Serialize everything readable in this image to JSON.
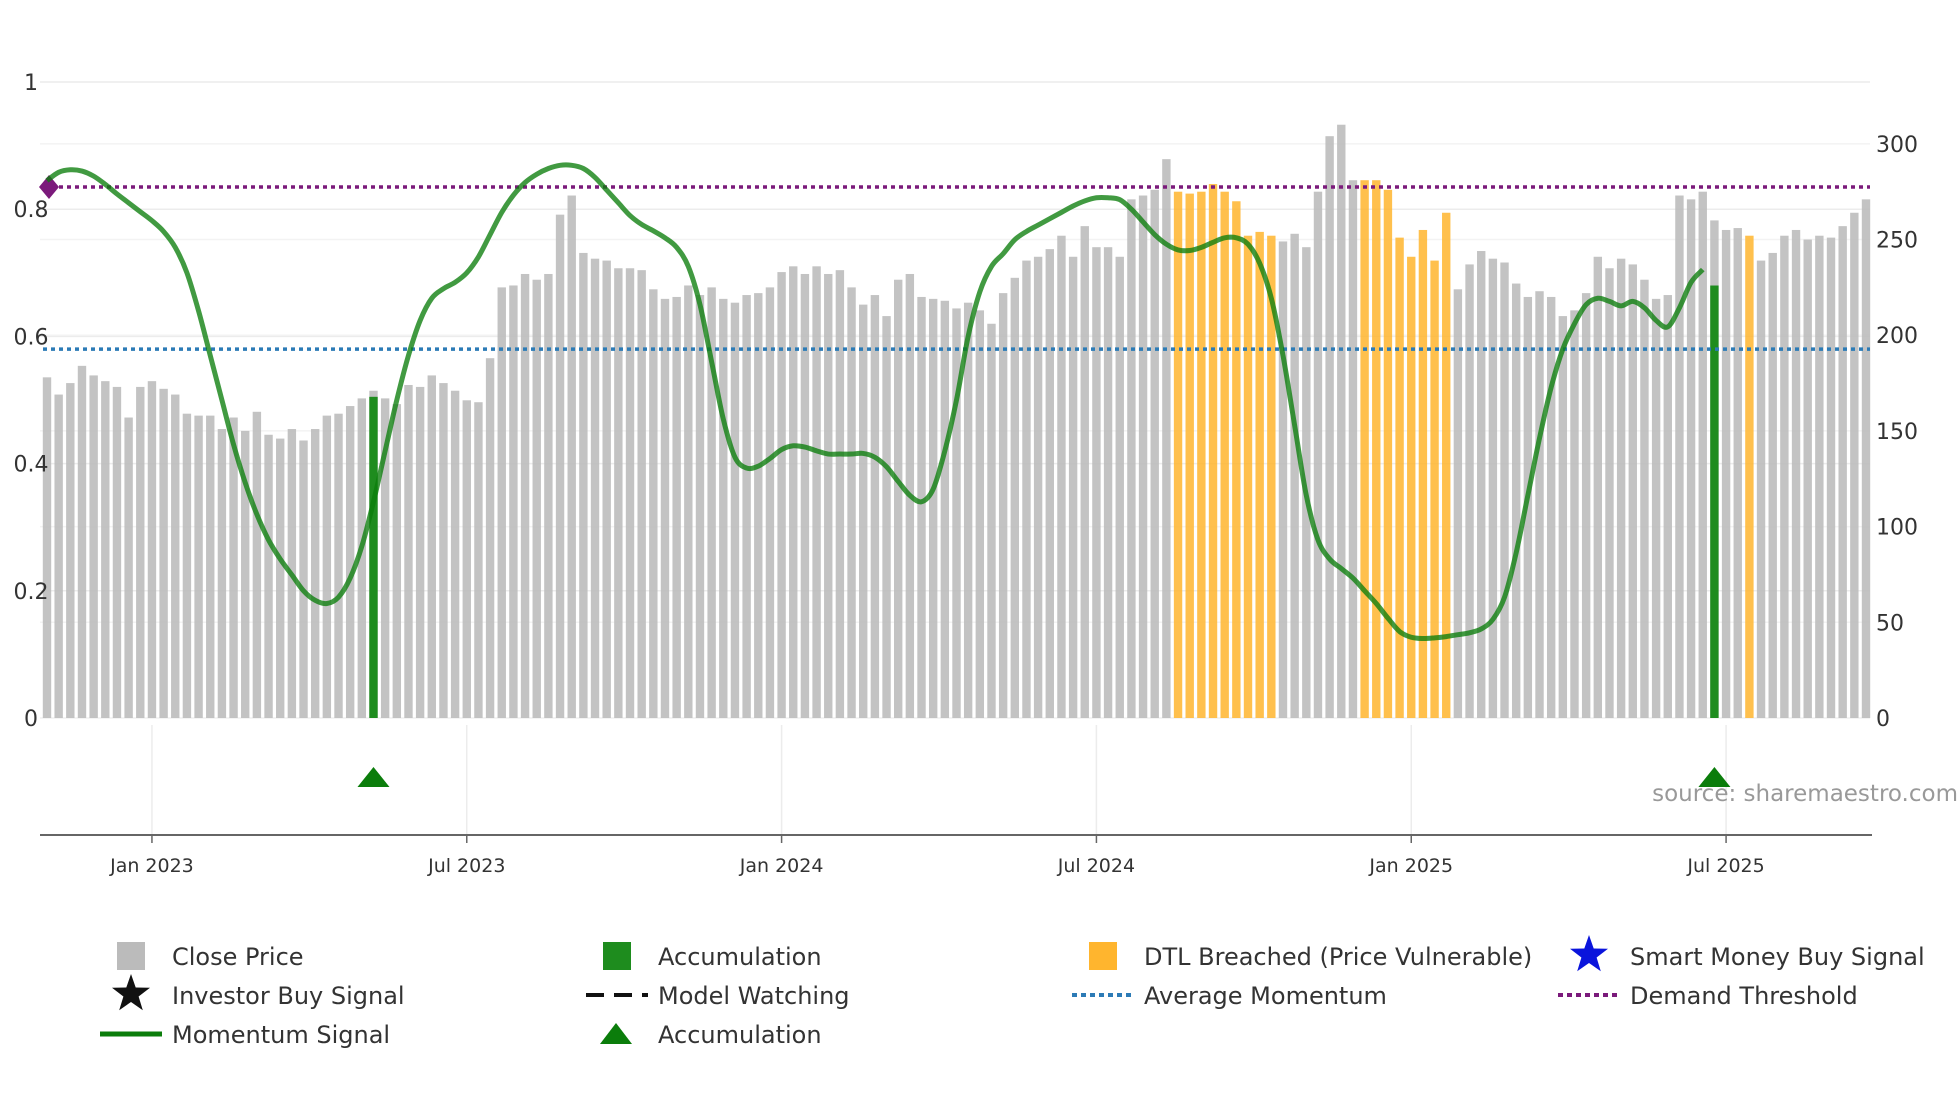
{
  "chart_data": {
    "type": "bar+line",
    "source": "source: sharemaestro.com",
    "left_axis": {
      "ticks": [
        "0",
        "0.2",
        "0.4",
        "0.6",
        "0.8",
        "1"
      ],
      "ylim": [
        0,
        1
      ]
    },
    "right_axis": {
      "ticks": [
        "0",
        "50",
        "100",
        "150",
        "200",
        "250",
        "300"
      ],
      "ylim": [
        0,
        325
      ]
    },
    "x_axis": {
      "labels": [
        "Jan 2023",
        "Jul 2023",
        "Jan 2024",
        "Jul 2024",
        "Jan 2025",
        "Jul 2025"
      ],
      "label_week_index": [
        9,
        36,
        63,
        90,
        117,
        144
      ]
    },
    "series": {
      "close_price": [
        178,
        169,
        175,
        184,
        179,
        176,
        173,
        157,
        173,
        176,
        172,
        169,
        159,
        158,
        158,
        151,
        157,
        150,
        160,
        148,
        146,
        151,
        145,
        151,
        158,
        159,
        163,
        167,
        171,
        167,
        164,
        174,
        173,
        179,
        175,
        171,
        166,
        165,
        188,
        225,
        226,
        232,
        229,
        232,
        263,
        273,
        243,
        240,
        239,
        235,
        235,
        234,
        224,
        219,
        220,
        226,
        221,
        225,
        219,
        217,
        221,
        222,
        225,
        233,
        236,
        232,
        236,
        232,
        234,
        225,
        216,
        221,
        210,
        229,
        232,
        220,
        219,
        218,
        214,
        217,
        213,
        206,
        222,
        230,
        239,
        241,
        245,
        252,
        241,
        257,
        246,
        246,
        241,
        271,
        273,
        276,
        292,
        275,
        274,
        275,
        279,
        275,
        270,
        252,
        254,
        252,
        249,
        253,
        246,
        275,
        304,
        310,
        281,
        281,
        281,
        276,
        251,
        241,
        255,
        239,
        264,
        224,
        237,
        244,
        240,
        238,
        227,
        220,
        223,
        220,
        210,
        213,
        222,
        241,
        235,
        240,
        237,
        229,
        219,
        221,
        273,
        271,
        275,
        260,
        255,
        256,
        252,
        239,
        243,
        252,
        255,
        250,
        252,
        251,
        257,
        264,
        271
      ],
      "momentum": [
        0.845,
        0.858,
        0.862,
        0.86,
        0.852,
        0.839,
        0.824,
        0.81,
        0.796,
        0.782,
        0.765,
        0.74,
        0.7,
        0.64,
        0.57,
        0.5,
        0.43,
        0.37,
        0.32,
        0.28,
        0.25,
        0.225,
        0.2,
        0.185,
        0.18,
        0.19,
        0.22,
        0.27,
        0.34,
        0.42,
        0.5,
        0.57,
        0.625,
        0.66,
        0.675,
        0.685,
        0.7,
        0.725,
        0.76,
        0.795,
        0.822,
        0.842,
        0.855,
        0.864,
        0.869,
        0.869,
        0.864,
        0.85,
        0.83,
        0.81,
        0.79,
        0.776,
        0.766,
        0.755,
        0.74,
        0.71,
        0.65,
        0.56,
        0.47,
        0.41,
        0.393,
        0.396,
        0.408,
        0.422,
        0.428,
        0.426,
        0.42,
        0.415,
        0.415,
        0.415,
        0.416,
        0.41,
        0.395,
        0.372,
        0.35,
        0.34,
        0.36,
        0.42,
        0.5,
        0.6,
        0.67,
        0.71,
        0.73,
        0.752,
        0.765,
        0.775,
        0.785,
        0.795,
        0.805,
        0.813,
        0.818,
        0.818,
        0.815,
        0.8,
        0.78,
        0.76,
        0.745,
        0.736,
        0.735,
        0.74,
        0.748,
        0.755,
        0.755,
        0.745,
        0.715,
        0.66,
        0.57,
        0.46,
        0.35,
        0.28,
        0.25,
        0.235,
        0.22,
        0.2,
        0.18,
        0.157,
        0.136,
        0.127,
        0.125,
        0.126,
        0.128,
        0.131,
        0.134,
        0.14,
        0.155,
        0.19,
        0.26,
        0.35,
        0.44,
        0.52,
        0.58,
        0.62,
        0.65,
        0.66,
        0.655,
        0.648,
        0.655,
        0.645,
        0.625,
        0.615,
        0.645,
        0.685,
        0.705
      ]
    },
    "accumulation_bars": [
      {
        "week": 28,
        "momentum": 0.505
      },
      {
        "week": 143,
        "momentum": 0.68
      }
    ],
    "dtl_breached_weeks": [
      97,
      98,
      99,
      100,
      101,
      102,
      103,
      104,
      105,
      113,
      114,
      115,
      116,
      117,
      118,
      119,
      120,
      146
    ],
    "accumulation_markers_week": [
      28,
      143
    ],
    "average_momentum": 0.58,
    "demand_threshold": 0.835,
    "legend": [
      {
        "label": "Close Price",
        "icon": "square",
        "color": "#bbbbbb"
      },
      {
        "label": "Accumulation",
        "icon": "square",
        "color": "#1e8c1e"
      },
      {
        "label": "DTL Breached (Price Vulnerable)",
        "icon": "square",
        "color": "#ffb52e"
      },
      {
        "label": "Smart Money Buy Signal",
        "icon": "star",
        "color": "#0a14dc"
      },
      {
        "label": "Investor Buy Signal",
        "icon": "star",
        "color": "#111111"
      },
      {
        "label": "Model Watching",
        "icon": "dash",
        "color": "#111111"
      },
      {
        "label": "Average Momentum",
        "icon": "dots",
        "color": "#2c7bb6"
      },
      {
        "label": "Demand Threshold",
        "icon": "dots",
        "color": "#7b1a7b"
      },
      {
        "label": "Momentum Signal",
        "icon": "line",
        "color": "#0b7d0b"
      },
      {
        "label": "Accumulation",
        "icon": "triangle",
        "color": "#0b7d0b"
      }
    ],
    "colors": {
      "close": "#bdbdbd",
      "dtl": "#ffb52e",
      "accumulation": "#1e8c1e",
      "momentum": "#0b7d0b",
      "avg": "#2c7bb6",
      "demand": "#7b1a7b",
      "threshold_marker": "#7b1a7b"
    }
  }
}
